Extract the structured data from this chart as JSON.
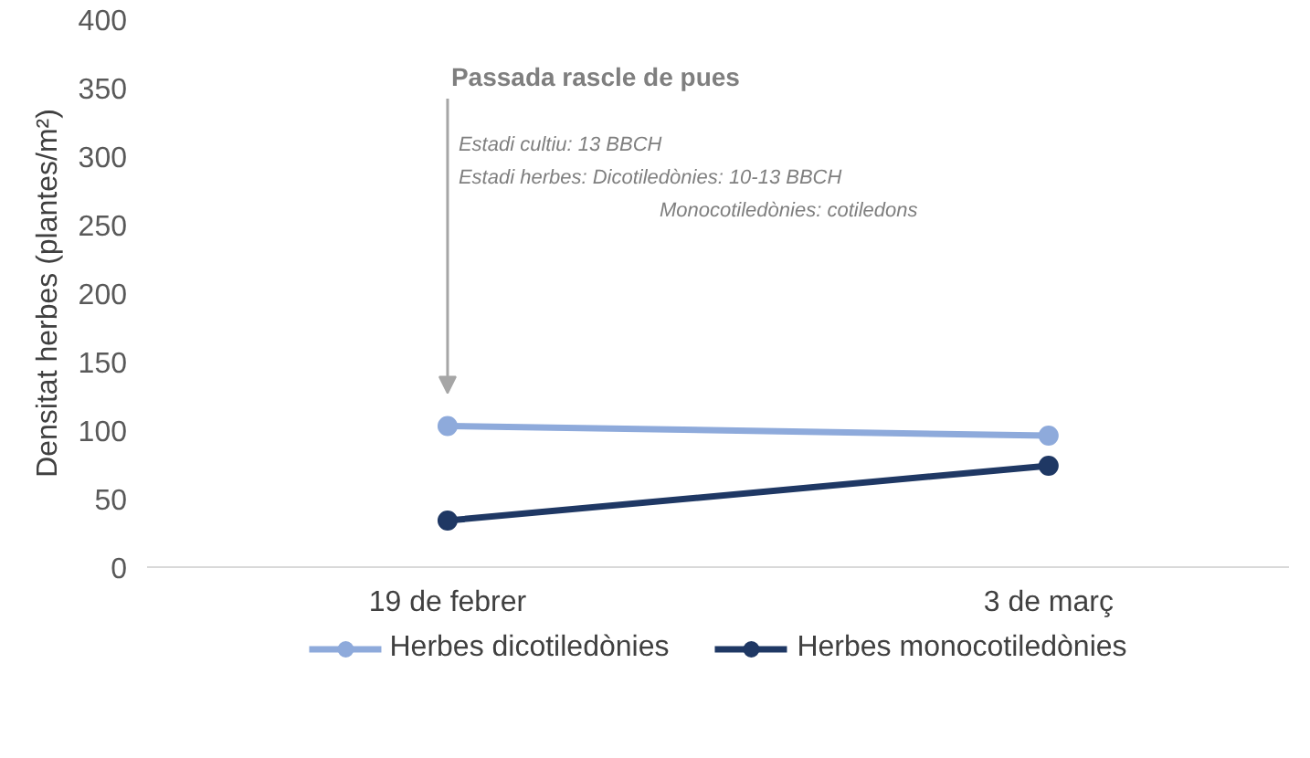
{
  "chart_data": {
    "type": "line",
    "ylabel": "Densitat herbes (plantes/m²)",
    "categories": [
      "19 de febrer",
      "3 de març"
    ],
    "series": [
      {
        "name": "Herbes dicotiledònies",
        "color": "#8eaadb",
        "values": [
          103,
          96
        ]
      },
      {
        "name": "Herbes monocotiledònies",
        "color": "#1f3864",
        "values": [
          34,
          74
        ]
      }
    ],
    "ylim": [
      0,
      400
    ],
    "yticks": [
      0,
      50,
      100,
      150,
      200,
      250,
      300,
      350,
      400
    ],
    "grid": false,
    "legend": "bottom",
    "marker": "circle",
    "line_style": "solid",
    "annotations": [
      "Passada rascle de pues",
      "Estadi cultiu: 13 BBCH",
      "Estadi herbes: Dicotiledònies: 10-13 BBCH",
      "Monocotiledònies:  cotiledons"
    ]
  }
}
